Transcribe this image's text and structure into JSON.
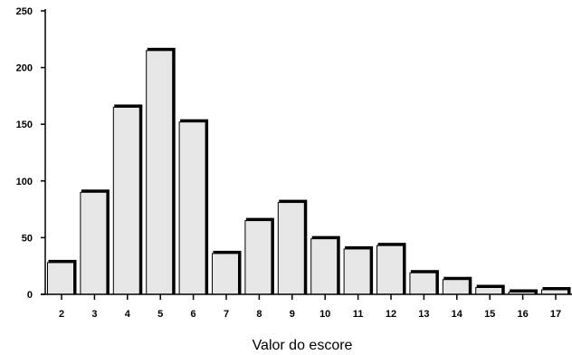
{
  "chart_data": {
    "type": "bar",
    "categories": [
      "2",
      "3",
      "4",
      "5",
      "6",
      "7",
      "8",
      "9",
      "10",
      "11",
      "12",
      "13",
      "14",
      "15",
      "16",
      "17"
    ],
    "values": [
      28,
      90,
      165,
      215,
      152,
      36,
      65,
      81,
      49,
      40,
      43,
      19,
      13,
      6,
      2,
      4
    ],
    "title": "",
    "xlabel": "Valor do escore",
    "ylabel": "",
    "ylim": [
      0,
      250
    ],
    "yticks": [
      0,
      50,
      100,
      150,
      200,
      250
    ],
    "grid": false,
    "legend": "none",
    "colors": {
      "bar_face": "#e6e6e6",
      "bar_edge": "#000000",
      "axis": "#000000"
    }
  }
}
